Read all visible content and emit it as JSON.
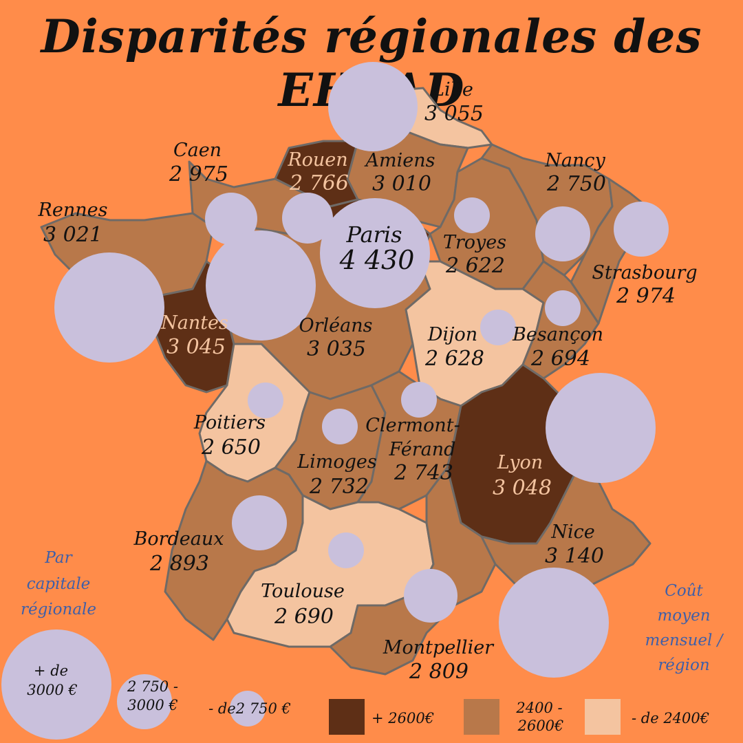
{
  "title": "Disparités régionales des EHPAD",
  "colors": {
    "background": "#ff8c4a",
    "high": "#5e2f16",
    "mid": "#b8784a",
    "low": "#f4c4a0",
    "bubble": "#c9c0dc",
    "legend_title": "#3f5fa8"
  },
  "regions": [
    {
      "city": "Lille",
      "value": "3 055",
      "tier": "low"
    },
    {
      "city": "Rouen",
      "value": "2 766",
      "tier": "high"
    },
    {
      "city": "Amiens",
      "value": "3 010",
      "tier": "mid"
    },
    {
      "city": "Caen",
      "value": "2 975",
      "tier": "mid"
    },
    {
      "city": "Nancy",
      "value": "2 750",
      "tier": "mid"
    },
    {
      "city": "Rennes",
      "value": "3 021",
      "tier": "mid"
    },
    {
      "city": "Paris",
      "value": "4 430",
      "tier": "high"
    },
    {
      "city": "Troyes",
      "value": "2 622",
      "tier": "mid"
    },
    {
      "city": "Strasbourg",
      "value": "2 974",
      "tier": "mid"
    },
    {
      "city": "Nantes",
      "value": "3 045",
      "tier": "high"
    },
    {
      "city": "Orléans",
      "value": "3 035",
      "tier": "mid"
    },
    {
      "city": "Dijon",
      "value": "2 628",
      "tier": "low"
    },
    {
      "city": "Besançon",
      "value": "2 694",
      "tier": "mid"
    },
    {
      "city": "Poitiers",
      "value": "2 650",
      "tier": "low"
    },
    {
      "city": "Clermont-Férand",
      "value": "2 743",
      "tier": "mid"
    },
    {
      "city": "Limoges",
      "value": "2 732",
      "tier": "mid"
    },
    {
      "city": "Lyon",
      "value": "3 048",
      "tier": "high"
    },
    {
      "city": "Bordeaux",
      "value": "2 893",
      "tier": "mid"
    },
    {
      "city": "Nice",
      "value": "3 140",
      "tier": "mid"
    },
    {
      "city": "Toulouse",
      "value": "2 690",
      "tier": "low"
    },
    {
      "city": "Montpellier",
      "value": "2 809",
      "tier": "mid"
    }
  ],
  "legend": {
    "bubble_title_lines": [
      "Par",
      "capitale",
      "régionale"
    ],
    "bubble_large_lines": [
      "+ de",
      "3000 €"
    ],
    "bubble_medium_lines": [
      "2 750 -",
      "3000 €"
    ],
    "bubble_small": "- de2 750  €",
    "color_title_lines": [
      "Coût",
      "moyen",
      "mensuel /",
      "région"
    ],
    "color_high": "+ 2600€",
    "color_mid_lines": [
      "2400 -",
      "2600€"
    ],
    "color_low": "- de 2400€"
  }
}
